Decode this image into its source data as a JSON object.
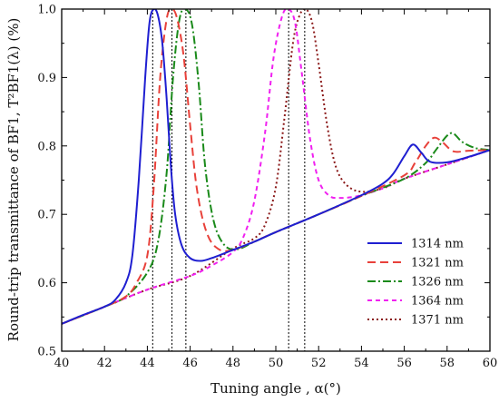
{
  "chart_data": {
    "type": "line",
    "xlabel": "Tuning angle , α(°)",
    "ylabel": "Round-trip transmittance of BF1, T²BF1(λ)  (%)",
    "xlim": [
      40,
      60
    ],
    "ylim": [
      0.5,
      1.0
    ],
    "xticks": [
      "40",
      "42",
      "44",
      "46",
      "48",
      "50",
      "52",
      "54",
      "56",
      "58",
      "60"
    ],
    "yticks": [
      "0.5",
      "0.6",
      "0.7",
      "0.8",
      "0.9",
      "1.0"
    ],
    "grid": false,
    "legend_position": "bottom-right",
    "vertical_markers": [
      44.25,
      45.15,
      45.8,
      50.6,
      51.35
    ],
    "series": [
      {
        "name": "1314 nm",
        "color": "#1f1fd1",
        "dash": "",
        "x": [
          40,
          41,
          42,
          42.5,
          43,
          43.3,
          43.6,
          43.9,
          44.1,
          44.3,
          44.5,
          44.7,
          44.9,
          45.1,
          45.3,
          45.6,
          46,
          46.5,
          47,
          48,
          49,
          50,
          52,
          54,
          55,
          55.5,
          56,
          56.4,
          56.8,
          57.2,
          58,
          59,
          60
        ],
        "y": [
          0.54,
          0.553,
          0.565,
          0.575,
          0.6,
          0.64,
          0.75,
          0.9,
          0.98,
          1.0,
          0.99,
          0.95,
          0.87,
          0.77,
          0.7,
          0.655,
          0.636,
          0.632,
          0.636,
          0.648,
          0.66,
          0.674,
          0.7,
          0.728,
          0.745,
          0.76,
          0.785,
          0.802,
          0.79,
          0.777,
          0.776,
          0.784,
          0.794
        ]
      },
      {
        "name": "1321 nm",
        "color": "#e8413a",
        "dash": "9,5",
        "x": [
          40,
          42,
          43,
          43.5,
          44,
          44.3,
          44.6,
          44.9,
          45.15,
          45.4,
          45.7,
          46,
          46.3,
          46.7,
          47.2,
          48,
          50,
          52,
          54,
          56,
          56.5,
          57,
          57.4,
          57.8,
          58.3,
          59,
          60
        ],
        "y": [
          0.54,
          0.565,
          0.58,
          0.6,
          0.64,
          0.74,
          0.9,
          0.985,
          1.0,
          0.985,
          0.93,
          0.83,
          0.74,
          0.68,
          0.652,
          0.648,
          0.674,
          0.7,
          0.727,
          0.757,
          0.775,
          0.8,
          0.812,
          0.805,
          0.792,
          0.793,
          0.794
        ]
      },
      {
        "name": "1326 nm",
        "color": "#1a8a1a",
        "dash": "9,3,2,3",
        "x": [
          40,
          42,
          43,
          44,
          44.5,
          44.9,
          45.2,
          45.5,
          45.8,
          46.1,
          46.4,
          46.7,
          47.1,
          47.6,
          48.2,
          49,
          50,
          52,
          54,
          56,
          57,
          57.5,
          58,
          58.3,
          58.7,
          59.3,
          60
        ],
        "y": [
          0.54,
          0.565,
          0.58,
          0.615,
          0.66,
          0.76,
          0.9,
          0.985,
          1.0,
          0.975,
          0.89,
          0.77,
          0.69,
          0.655,
          0.649,
          0.66,
          0.674,
          0.7,
          0.727,
          0.752,
          0.775,
          0.795,
          0.815,
          0.818,
          0.806,
          0.797,
          0.794
        ]
      },
      {
        "name": "1364 nm",
        "color": "#f020f0",
        "dash": "5,4",
        "x": [
          40,
          42,
          44,
          46,
          47,
          48,
          48.5,
          49,
          49.5,
          49.9,
          50.3,
          50.6,
          50.9,
          51.2,
          51.6,
          52,
          52.5,
          53,
          53.5,
          54,
          55,
          56,
          58,
          60
        ],
        "y": [
          0.54,
          0.565,
          0.59,
          0.61,
          0.625,
          0.645,
          0.668,
          0.72,
          0.82,
          0.93,
          0.99,
          1.0,
          0.98,
          0.91,
          0.81,
          0.75,
          0.727,
          0.724,
          0.725,
          0.728,
          0.738,
          0.752,
          0.773,
          0.794
        ]
      },
      {
        "name": "1371 nm",
        "color": "#8b1a1a",
        "dash": "2,3",
        "x": [
          40,
          42,
          44,
          46,
          48,
          49,
          49.5,
          50,
          50.4,
          50.8,
          51.1,
          51.4,
          51.7,
          52,
          52.4,
          52.8,
          53.3,
          54,
          55,
          56,
          58,
          60
        ],
        "y": [
          0.54,
          0.565,
          0.59,
          0.61,
          0.65,
          0.665,
          0.685,
          0.74,
          0.84,
          0.95,
          0.99,
          1.0,
          0.98,
          0.92,
          0.83,
          0.77,
          0.743,
          0.733,
          0.738,
          0.752,
          0.773,
          0.794
        ]
      }
    ]
  }
}
